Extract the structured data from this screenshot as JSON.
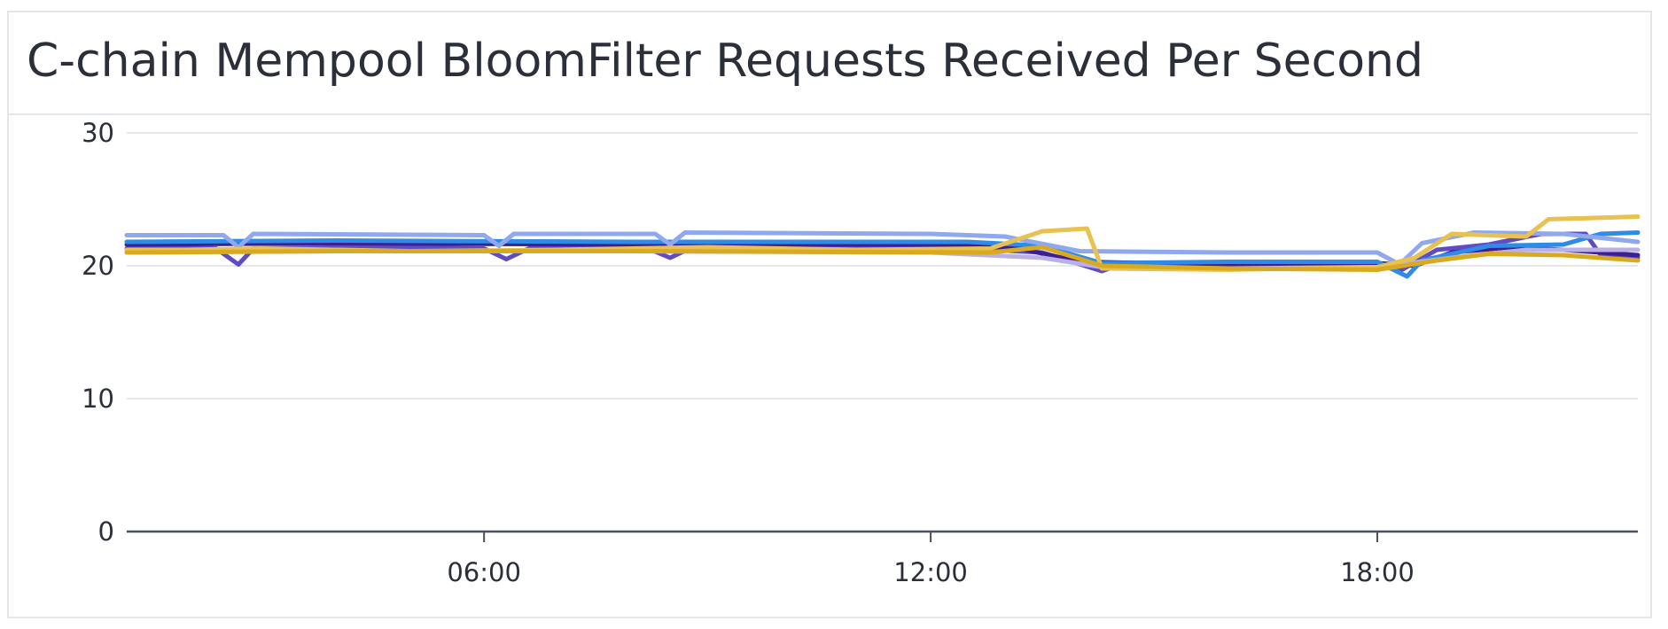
{
  "panel": {
    "title": "C-chain Mempool BloomFilter Requests Received Per Second"
  },
  "chart_data": {
    "type": "line",
    "title": "C-chain Mempool BloomFilter Requests Received Per Second",
    "xlabel": "",
    "ylabel": "",
    "x_ticks": [
      "06:00",
      "12:00",
      "18:00"
    ],
    "x_tick_positions": [
      6,
      12,
      18
    ],
    "y_ticks": [
      0,
      10,
      20,
      30
    ],
    "xlim": [
      1.2,
      21.5
    ],
    "ylim": [
      0,
      30
    ],
    "grid": true,
    "legend": false,
    "series": [
      {
        "color": "#5f4bc4",
        "points": [
          [
            1.2,
            21.3
          ],
          [
            2.4,
            21.3
          ],
          [
            2.7,
            20.1
          ],
          [
            2.9,
            21.3
          ],
          [
            4.5,
            21.4
          ],
          [
            6.0,
            21.3
          ],
          [
            6.3,
            20.5
          ],
          [
            6.6,
            21.3
          ],
          [
            8.2,
            21.3
          ],
          [
            8.5,
            20.6
          ],
          [
            8.8,
            21.4
          ],
          [
            10.5,
            21.4
          ],
          [
            12.8,
            21.2
          ],
          [
            13.5,
            21.0
          ],
          [
            14.3,
            19.6
          ],
          [
            14.5,
            20.0
          ],
          [
            16.0,
            20.0
          ],
          [
            18.0,
            20.1
          ],
          [
            18.3,
            19.6
          ],
          [
            18.8,
            21.2
          ],
          [
            19.5,
            21.6
          ],
          [
            20.2,
            22.4
          ],
          [
            20.8,
            22.4
          ],
          [
            21.0,
            20.8
          ],
          [
            21.5,
            20.6
          ]
        ]
      },
      {
        "color": "#3d1f91",
        "points": [
          [
            1.2,
            21.6
          ],
          [
            4.0,
            21.7
          ],
          [
            8.0,
            21.6
          ],
          [
            12.5,
            21.6
          ],
          [
            13.2,
            21.3
          ],
          [
            14.0,
            20.3
          ],
          [
            16.0,
            20.1
          ],
          [
            18.0,
            20.2
          ],
          [
            18.5,
            20.0
          ],
          [
            19.0,
            21.0
          ],
          [
            19.8,
            21.4
          ],
          [
            20.5,
            21.2
          ],
          [
            21.5,
            20.8
          ]
        ]
      },
      {
        "color": "#2f8ce6",
        "points": [
          [
            1.2,
            21.8
          ],
          [
            4.0,
            21.9
          ],
          [
            8.0,
            21.8
          ],
          [
            12.5,
            21.8
          ],
          [
            13.5,
            21.5
          ],
          [
            14.3,
            20.2
          ],
          [
            16.0,
            20.3
          ],
          [
            18.0,
            20.3
          ],
          [
            18.4,
            19.2
          ],
          [
            18.6,
            20.4
          ],
          [
            19.5,
            21.5
          ],
          [
            20.5,
            21.6
          ],
          [
            21.0,
            22.4
          ],
          [
            21.5,
            22.5
          ]
        ]
      },
      {
        "color": "#8fa8ee",
        "points": [
          [
            1.2,
            22.3
          ],
          [
            2.5,
            22.3
          ],
          [
            2.7,
            21.4
          ],
          [
            2.9,
            22.4
          ],
          [
            6.0,
            22.3
          ],
          [
            6.2,
            21.5
          ],
          [
            6.4,
            22.4
          ],
          [
            8.3,
            22.4
          ],
          [
            8.5,
            21.6
          ],
          [
            8.7,
            22.5
          ],
          [
            12.0,
            22.4
          ],
          [
            13.0,
            22.2
          ],
          [
            14.0,
            21.1
          ],
          [
            16.0,
            21.0
          ],
          [
            18.0,
            21.0
          ],
          [
            18.3,
            20.1
          ],
          [
            18.6,
            21.7
          ],
          [
            19.3,
            22.5
          ],
          [
            20.5,
            22.4
          ],
          [
            21.5,
            21.8
          ]
        ]
      },
      {
        "color": "#b9b1e5",
        "points": [
          [
            1.2,
            21.0
          ],
          [
            4.0,
            21.1
          ],
          [
            8.0,
            21.1
          ],
          [
            12.0,
            21.0
          ],
          [
            13.5,
            20.6
          ],
          [
            14.3,
            19.9
          ],
          [
            16.0,
            19.8
          ],
          [
            18.0,
            19.9
          ],
          [
            19.0,
            20.6
          ],
          [
            20.0,
            21.2
          ],
          [
            21.5,
            21.2
          ]
        ]
      },
      {
        "color": "#e8c150",
        "points": [
          [
            1.2,
            21.2
          ],
          [
            2.0,
            21.2
          ],
          [
            3.0,
            21.3
          ],
          [
            5.0,
            21.1
          ],
          [
            7.0,
            21.2
          ],
          [
            9.0,
            21.4
          ],
          [
            11.0,
            21.2
          ],
          [
            12.8,
            21.3
          ],
          [
            13.5,
            22.6
          ],
          [
            14.1,
            22.8
          ],
          [
            14.3,
            19.8
          ],
          [
            16.0,
            19.7
          ],
          [
            18.0,
            19.9
          ],
          [
            18.5,
            20.6
          ],
          [
            19.0,
            22.4
          ],
          [
            20.0,
            22.2
          ],
          [
            20.3,
            23.5
          ],
          [
            21.5,
            23.7
          ]
        ]
      },
      {
        "color": "#d9a91f",
        "points": [
          [
            1.2,
            21.0
          ],
          [
            4.0,
            21.1
          ],
          [
            8.0,
            21.1
          ],
          [
            12.8,
            21.0
          ],
          [
            13.5,
            21.4
          ],
          [
            14.3,
            20.0
          ],
          [
            16.0,
            19.8
          ],
          [
            18.0,
            19.7
          ],
          [
            18.8,
            20.4
          ],
          [
            19.5,
            20.9
          ],
          [
            20.5,
            20.8
          ],
          [
            21.5,
            20.4
          ]
        ]
      }
    ]
  }
}
